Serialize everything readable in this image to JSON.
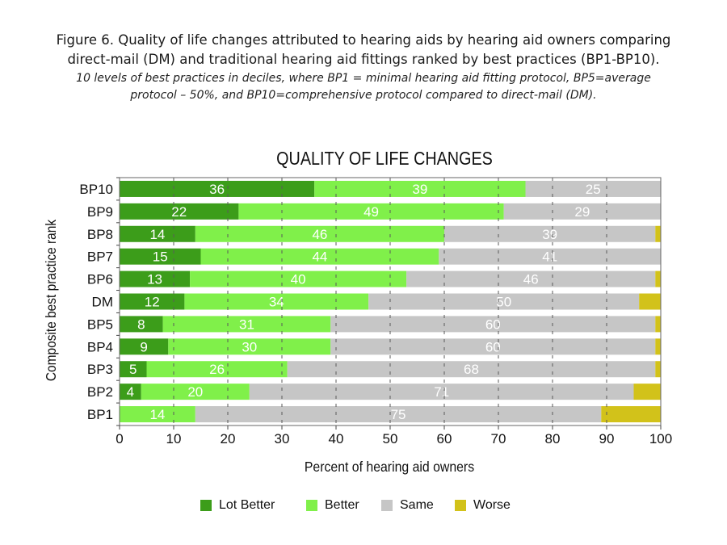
{
  "figure_caption": {
    "line1": "Figure 6. Quality of life changes attributed to hearing aids by hearing aid owners comparing",
    "line2": "direct-mail (DM) and traditional hearing aid fittings ranked by best practices (BP1-BP10).",
    "note1": "10 levels of best practices in deciles, where BP1 = minimal hearing aid fitting protocol, BP5=average",
    "note2": "protocol – 50%, and BP10=comprehensive protocol compared to direct-mail (DM)."
  },
  "chart_data": {
    "type": "bar",
    "orientation": "horizontal",
    "stacked": true,
    "title": "QUALITY OF LIFE CHANGES",
    "xlabel": "Percent of hearing aid owners",
    "ylabel": "Composite best practice rank",
    "xlim": [
      0,
      100
    ],
    "xticks": [
      0,
      10,
      20,
      30,
      40,
      50,
      60,
      70,
      80,
      90,
      100
    ],
    "grid": "vertical-dashed",
    "legend_position": "bottom",
    "categories": [
      "BP10",
      "BP9",
      "BP8",
      "BP7",
      "BP6",
      "DM",
      "BP5",
      "BP4",
      "BP3",
      "BP2",
      "BP1"
    ],
    "series": [
      {
        "name": "Lot Better",
        "color": "#3c9d1a",
        "values": [
          36,
          22,
          14,
          15,
          13,
          12,
          8,
          9,
          5,
          4,
          0
        ],
        "labels": [
          "36",
          "22",
          "14",
          "15",
          "13",
          "12",
          "8",
          "9",
          "5",
          "4",
          ""
        ]
      },
      {
        "name": "Better",
        "color": "#80f04a",
        "values": [
          39,
          49,
          46,
          44,
          40,
          34,
          31,
          30,
          26,
          20,
          14
        ],
        "labels": [
          "39",
          "49",
          "46",
          "44",
          "40",
          "34",
          "31",
          "30",
          "26",
          "20",
          "14"
        ]
      },
      {
        "name": "Same",
        "color": "#c6c6c6",
        "values": [
          25,
          29,
          39,
          41,
          46,
          50,
          60,
          60,
          68,
          71,
          75
        ],
        "labels": [
          "25",
          "29",
          "39",
          "41",
          "46",
          "50",
          "60",
          "60",
          "68",
          "71",
          "75"
        ]
      },
      {
        "name": "Worse",
        "color": "#d2c21a",
        "values": [
          0,
          0,
          1,
          0,
          1,
          4,
          1,
          1,
          1,
          5,
          11
        ],
        "labels": [
          "",
          "",
          "",
          "",
          "",
          "",
          "",
          "",
          "",
          "",
          ""
        ]
      }
    ]
  }
}
